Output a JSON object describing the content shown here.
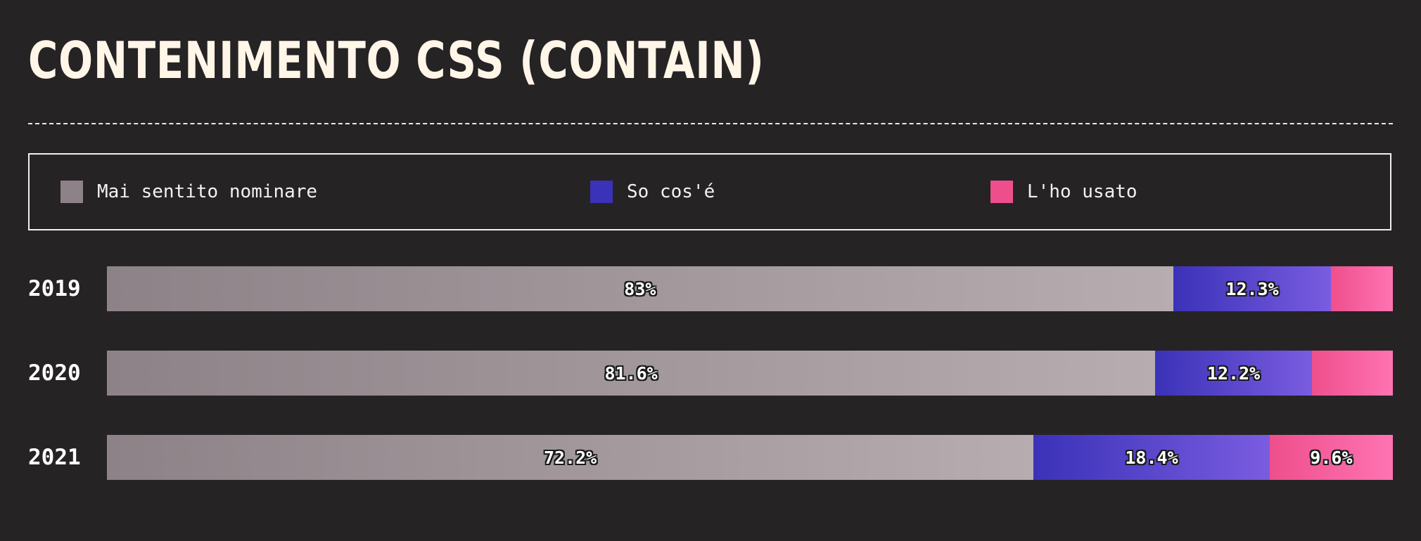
{
  "chart_data": {
    "type": "bar",
    "orientation": "horizontal-stacked",
    "title": "CONTENIMENTO CSS (CONTAIN)",
    "legend_position": "top",
    "categories": [
      "2019",
      "2020",
      "2021"
    ],
    "series": [
      {
        "name": "Mai sentito nominare",
        "values": [
          83.0,
          81.6,
          72.2
        ],
        "labels": [
          "83%",
          "81.6%",
          "72.2%"
        ],
        "color_start": "#8c8287",
        "color_end": "#b7adb0",
        "swatch": "#8c8287"
      },
      {
        "name": "So cos'é",
        "values": [
          12.3,
          12.2,
          18.4
        ],
        "labels": [
          "12.3%",
          "12.2%",
          "18.4%"
        ],
        "color_start": "#3a32b8",
        "color_end": "#7a5ce0",
        "swatch": "#3a32b8"
      },
      {
        "name": "L'ho usato",
        "values": [
          4.8,
          6.3,
          9.6
        ],
        "labels": [
          "",
          "",
          "9.6%"
        ],
        "color_start": "#ee4f8c",
        "color_end": "#ff73b2",
        "swatch": "#ee4f8c"
      }
    ]
  }
}
